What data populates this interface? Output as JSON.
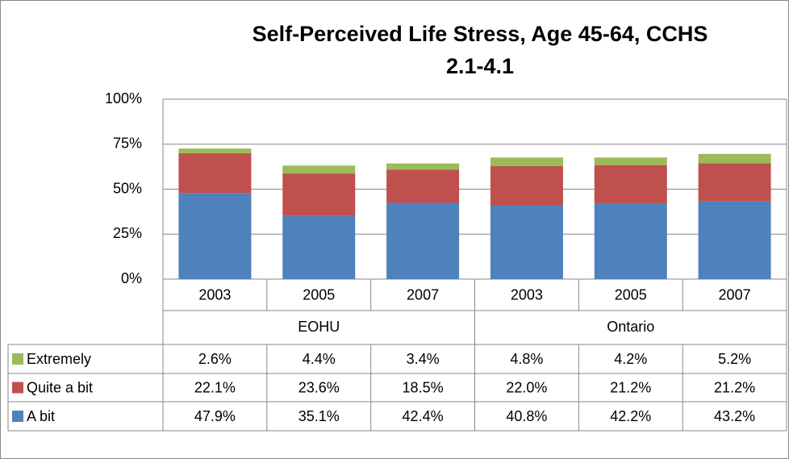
{
  "chart_data": {
    "type": "stacked_bar",
    "title": "Self-Perceived Life Stress, Age 45-64, CCHS 2.1-4.1",
    "groups": [
      {
        "name": "EOHU",
        "categories": [
          "2003",
          "2005",
          "2007"
        ]
      },
      {
        "name": "Ontario",
        "categories": [
          "2003",
          "2005",
          "2007"
        ]
      }
    ],
    "series": [
      {
        "name": "Extremely",
        "color": "#9bbb59",
        "values": [
          2.6,
          4.4,
          3.4,
          4.8,
          4.2,
          5.2
        ],
        "value_labels": [
          "2.6%",
          "4.4%",
          "3.4%",
          "4.8%",
          "4.2%",
          "5.2%"
        ]
      },
      {
        "name": "Quite a bit",
        "color": "#c0504d",
        "values": [
          22.1,
          23.6,
          18.5,
          22.0,
          21.2,
          21.2
        ],
        "value_labels": [
          "22.1%",
          "23.6%",
          "18.5%",
          "22.0%",
          "21.2%",
          "21.2%"
        ]
      },
      {
        "name": "A bit",
        "color": "#4f81bd",
        "values": [
          47.9,
          35.1,
          42.4,
          40.8,
          42.2,
          43.2
        ],
        "value_labels": [
          "47.9%",
          "35.1%",
          "42.4%",
          "40.8%",
          "42.2%",
          "43.2%"
        ]
      }
    ],
    "ylim": [
      0,
      100
    ],
    "yticks": [
      {
        "value": 0,
        "label": "0%"
      },
      {
        "value": 25,
        "label": "25%"
      },
      {
        "value": 50,
        "label": "50%"
      },
      {
        "value": 75,
        "label": "75%"
      },
      {
        "value": 100,
        "label": "100%"
      }
    ],
    "grid": true
  }
}
